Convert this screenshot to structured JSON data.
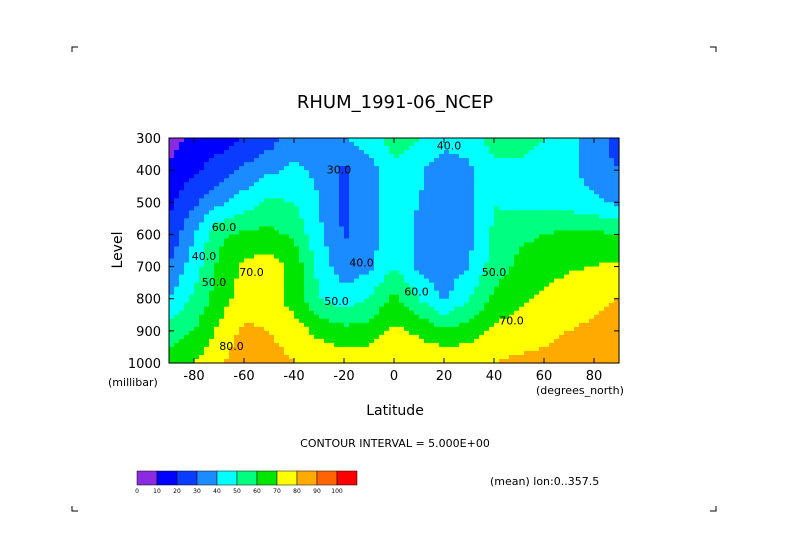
{
  "chart_data": {
    "type": "heatmap",
    "title": "RHUM_1991-06_NCEP",
    "xlabel": "Latitude",
    "ylabel": "Level",
    "x_units": "(degrees_north)",
    "y_units": "(millibar)",
    "xlim": [
      -90,
      90
    ],
    "ylim": [
      1000,
      300
    ],
    "x_ticks": [
      -80,
      -60,
      -40,
      -20,
      0,
      20,
      40,
      60,
      80
    ],
    "x_tick_labels": [
      "-80",
      "-60",
      "-40",
      "-20",
      "0",
      "20",
      "40",
      "60",
      "80"
    ],
    "y_ticks": [
      300,
      400,
      500,
      600,
      700,
      800,
      900,
      1000
    ],
    "y_tick_labels": [
      "300",
      "400",
      "500",
      "600",
      "700",
      "800",
      "900",
      "1000"
    ],
    "contour_interval_text": "CONTOUR INTERVAL = 5.000E+00",
    "mean_text": "(mean) lon:0..357.5",
    "contour_labels": [
      {
        "text": "30.0",
        "x": -22,
        "y": 410
      },
      {
        "text": "40.0",
        "x": 22,
        "y": 335
      },
      {
        "text": "40.0",
        "x": -13,
        "y": 700
      },
      {
        "text": "50.0",
        "x": -23,
        "y": 820
      },
      {
        "text": "60.0",
        "x": 9,
        "y": 790
      },
      {
        "text": "50.0",
        "x": 40,
        "y": 730
      },
      {
        "text": "70.0",
        "x": 47,
        "y": 880
      },
      {
        "text": "60.0",
        "x": -68,
        "y": 590
      },
      {
        "text": "40.0",
        "x": -76,
        "y": 680
      },
      {
        "text": "50.0",
        "x": -72,
        "y": 760
      },
      {
        "text": "70.0",
        "x": -57,
        "y": 730
      },
      {
        "text": "80.0",
        "x": -65,
        "y": 960
      }
    ],
    "colorbar": {
      "ticks": [
        "0",
        "10",
        "20",
        "30",
        "40",
        "50",
        "60",
        "70",
        "80",
        "90",
        "100"
      ],
      "colors": [
        "#8a2be2",
        "#0000ff",
        "#0a3cff",
        "#1a8cff",
        "#00ffff",
        "#00ff80",
        "#00e600",
        "#ffff00",
        "#ffaa00",
        "#ff6400",
        "#ff0000"
      ]
    },
    "lat": [
      -90,
      -80,
      -70,
      -60,
      -50,
      -40,
      -30,
      -20,
      -10,
      0,
      10,
      20,
      30,
      40,
      50,
      60,
      70,
      80,
      90
    ],
    "lev": [
      300,
      400,
      500,
      600,
      700,
      800,
      900,
      1000
    ],
    "rhum": [
      [
        6,
        12,
        15,
        20,
        25,
        35,
        40,
        40,
        45,
        55,
        50,
        45,
        45,
        55,
        55,
        50,
        45,
        35,
        25
      ],
      [
        12,
        18,
        25,
        32,
        38,
        42,
        38,
        28,
        35,
        48,
        42,
        33,
        38,
        47,
        47,
        45,
        42,
        35,
        30
      ],
      [
        18,
        28,
        38,
        45,
        52,
        50,
        40,
        28,
        35,
        45,
        40,
        33,
        38,
        50,
        47,
        47,
        45,
        42,
        38
      ],
      [
        22,
        40,
        58,
        62,
        63,
        58,
        42,
        29,
        35,
        45,
        38,
        31,
        37,
        52,
        58,
        60,
        62,
        62,
        60
      ],
      [
        30,
        45,
        62,
        72,
        75,
        67,
        47,
        33,
        38,
        50,
        38,
        34,
        40,
        55,
        62,
        66,
        69,
        70,
        72
      ],
      [
        40,
        52,
        65,
        75,
        76,
        65,
        50,
        45,
        50,
        63,
        50,
        38,
        50,
        62,
        68,
        72,
        75,
        77,
        80
      ],
      [
        55,
        60,
        72,
        82,
        80,
        75,
        67,
        63,
        64,
        72,
        68,
        62,
        65,
        72,
        75,
        78,
        80,
        82,
        85
      ],
      [
        65,
        70,
        78,
        88,
        84,
        80,
        78,
        76,
        78,
        80,
        78,
        78,
        78,
        80,
        82,
        82,
        84,
        88,
        90
      ]
    ]
  }
}
